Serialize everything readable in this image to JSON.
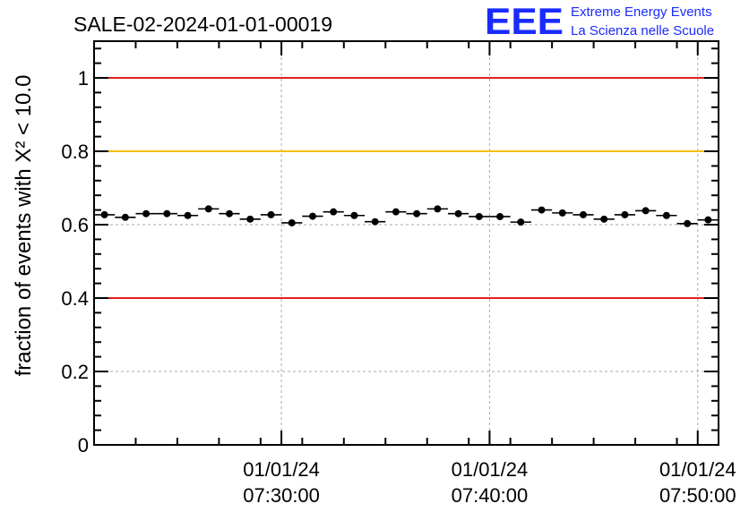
{
  "chart_data": {
    "type": "scatter",
    "title": "SALE-02-2024-01-01-00019",
    "ylabel": "fraction of events with Χ² < 10.0",
    "ylim": [
      0,
      1.1
    ],
    "yticks": [
      0,
      0.2,
      0.4,
      0.6,
      0.8,
      1
    ],
    "ytick_labels": [
      "0",
      "0.2",
      "0.4",
      "0.6",
      "0.8",
      "1"
    ],
    "xlim": [
      "2024-01-01 07:21:00",
      "2024-01-01 07:51:00"
    ],
    "xticks": [
      {
        "value": "2024-01-01 07:30:00",
        "date": "01/01/24",
        "time": "07:30:00"
      },
      {
        "value": "2024-01-01 07:40:00",
        "date": "01/01/24",
        "time": "07:40:00"
      },
      {
        "value": "2024-01-01 07:50:00",
        "date": "01/01/24",
        "time": "07:50:00"
      }
    ],
    "grid": true,
    "reference_lines": [
      {
        "y": 1.0,
        "color": "#e02020"
      },
      {
        "y": 0.8,
        "color": "#f5c000"
      },
      {
        "y": 0.4,
        "color": "#e02020"
      }
    ],
    "series": [
      {
        "color": "#000000",
        "bin_minutes": 1,
        "x": [
          "2024-01-01 07:21:30",
          "2024-01-01 07:22:30",
          "2024-01-01 07:23:30",
          "2024-01-01 07:24:30",
          "2024-01-01 07:25:30",
          "2024-01-01 07:26:30",
          "2024-01-01 07:27:30",
          "2024-01-01 07:28:30",
          "2024-01-01 07:29:30",
          "2024-01-01 07:30:30",
          "2024-01-01 07:31:30",
          "2024-01-01 07:32:30",
          "2024-01-01 07:33:30",
          "2024-01-01 07:34:30",
          "2024-01-01 07:35:30",
          "2024-01-01 07:36:30",
          "2024-01-01 07:37:30",
          "2024-01-01 07:38:30",
          "2024-01-01 07:39:30",
          "2024-01-01 07:40:30",
          "2024-01-01 07:41:30",
          "2024-01-01 07:42:30",
          "2024-01-01 07:43:30",
          "2024-01-01 07:44:30",
          "2024-01-01 07:45:30",
          "2024-01-01 07:46:30",
          "2024-01-01 07:47:30",
          "2024-01-01 07:48:30",
          "2024-01-01 07:49:30",
          "2024-01-01 07:50:30"
        ],
        "values": [
          0.627,
          0.62,
          0.63,
          0.63,
          0.625,
          0.643,
          0.63,
          0.615,
          0.627,
          0.605,
          0.623,
          0.635,
          0.625,
          0.608,
          0.635,
          0.63,
          0.643,
          0.63,
          0.622,
          0.622,
          0.607,
          0.64,
          0.632,
          0.627,
          0.615,
          0.627,
          0.638,
          0.625,
          0.603,
          0.613
        ],
        "errors": [
          0.008,
          0.008,
          0.008,
          0.008,
          0.008,
          0.008,
          0.008,
          0.008,
          0.008,
          0.008,
          0.008,
          0.008,
          0.008,
          0.008,
          0.008,
          0.008,
          0.008,
          0.008,
          0.008,
          0.008,
          0.008,
          0.008,
          0.008,
          0.008,
          0.008,
          0.008,
          0.008,
          0.008,
          0.008,
          0.008
        ]
      }
    ]
  },
  "logo": {
    "mark": "EEE",
    "line1": "Extreme Energy Events",
    "line2": "La Scienza nelle Scuole",
    "color": "#1a2bff"
  }
}
